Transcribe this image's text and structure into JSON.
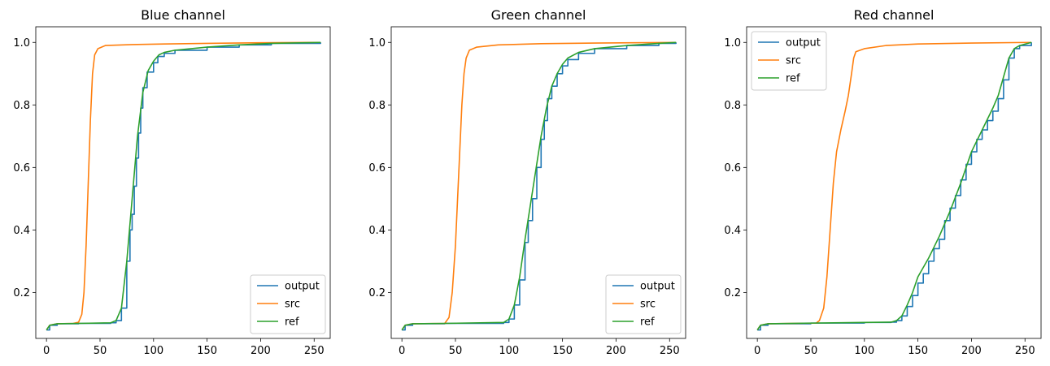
{
  "chart_data": [
    {
      "type": "line",
      "title": "Blue channel",
      "xlim": [
        -10,
        265
      ],
      "ylim": [
        0.053,
        1.05
      ],
      "xticks": [
        0,
        50,
        100,
        150,
        200,
        250
      ],
      "xtick_labels": [
        "0",
        "50",
        "100",
        "150",
        "200",
        "250"
      ],
      "yticks": [
        0.2,
        0.4,
        0.6,
        0.8,
        1.0
      ],
      "ytick_labels": [
        "0.2",
        "0.4",
        "0.6",
        "0.8",
        "1.0"
      ],
      "legend_position": "lower right",
      "series": [
        {
          "name": "output",
          "color": "#1f77b4",
          "step": true,
          "points": [
            [
              0,
              0.08
            ],
            [
              3,
              0.095
            ],
            [
              10,
              0.1
            ],
            [
              30,
              0.101
            ],
            [
              60,
              0.103
            ],
            [
              65,
              0.11
            ],
            [
              70,
              0.15
            ],
            [
              75,
              0.3
            ],
            [
              78,
              0.4
            ],
            [
              80,
              0.45
            ],
            [
              82,
              0.54
            ],
            [
              84,
              0.63
            ],
            [
              86,
              0.71
            ],
            [
              88,
              0.79
            ],
            [
              90,
              0.855
            ],
            [
              94,
              0.905
            ],
            [
              100,
              0.935
            ],
            [
              104,
              0.955
            ],
            [
              110,
              0.965
            ],
            [
              120,
              0.975
            ],
            [
              150,
              0.985
            ],
            [
              180,
              0.992
            ],
            [
              210,
              0.997
            ],
            [
              256,
              1.0
            ]
          ]
        },
        {
          "name": "src",
          "color": "#ff7f0e",
          "step": false,
          "points": [
            [
              0,
              0.08
            ],
            [
              3,
              0.095
            ],
            [
              10,
              0.1
            ],
            [
              25,
              0.101
            ],
            [
              30,
              0.105
            ],
            [
              33,
              0.13
            ],
            [
              35,
              0.2
            ],
            [
              37,
              0.35
            ],
            [
              39,
              0.55
            ],
            [
              41,
              0.75
            ],
            [
              43,
              0.9
            ],
            [
              45,
              0.96
            ],
            [
              48,
              0.98
            ],
            [
              55,
              0.99
            ],
            [
              80,
              0.993
            ],
            [
              110,
              0.995
            ],
            [
              150,
              0.997
            ],
            [
              200,
              0.999
            ],
            [
              256,
              1.0
            ]
          ]
        },
        {
          "name": "ref",
          "color": "#2ca02c",
          "step": false,
          "points": [
            [
              0,
              0.08
            ],
            [
              3,
              0.095
            ],
            [
              10,
              0.1
            ],
            [
              30,
              0.101
            ],
            [
              60,
              0.103
            ],
            [
              65,
              0.11
            ],
            [
              70,
              0.15
            ],
            [
              75,
              0.3
            ],
            [
              80,
              0.5
            ],
            [
              85,
              0.7
            ],
            [
              90,
              0.84
            ],
            [
              95,
              0.91
            ],
            [
              100,
              0.94
            ],
            [
              105,
              0.96
            ],
            [
              110,
              0.968
            ],
            [
              120,
              0.975
            ],
            [
              150,
              0.985
            ],
            [
              180,
              0.992
            ],
            [
              210,
              0.997
            ],
            [
              256,
              1.0
            ]
          ]
        }
      ]
    },
    {
      "type": "line",
      "title": "Green channel",
      "xlim": [
        -10,
        265
      ],
      "ylim": [
        0.053,
        1.05
      ],
      "xticks": [
        0,
        50,
        100,
        150,
        200,
        250
      ],
      "xtick_labels": [
        "0",
        "50",
        "100",
        "150",
        "200",
        "250"
      ],
      "yticks": [
        0.2,
        0.4,
        0.6,
        0.8,
        1.0
      ],
      "ytick_labels": [
        "0.2",
        "0.4",
        "0.6",
        "0.8",
        "1.0"
      ],
      "legend_position": "lower right",
      "series": [
        {
          "name": "output",
          "color": "#1f77b4",
          "step": true,
          "points": [
            [
              0,
              0.08
            ],
            [
              3,
              0.095
            ],
            [
              10,
              0.1
            ],
            [
              40,
              0.101
            ],
            [
              95,
              0.104
            ],
            [
              100,
              0.115
            ],
            [
              105,
              0.16
            ],
            [
              110,
              0.24
            ],
            [
              115,
              0.36
            ],
            [
              118,
              0.43
            ],
            [
              122,
              0.5
            ],
            [
              126,
              0.6
            ],
            [
              130,
              0.69
            ],
            [
              133,
              0.75
            ],
            [
              136,
              0.82
            ],
            [
              140,
              0.86
            ],
            [
              145,
              0.9
            ],
            [
              150,
              0.925
            ],
            [
              155,
              0.945
            ],
            [
              165,
              0.965
            ],
            [
              180,
              0.98
            ],
            [
              210,
              0.99
            ],
            [
              240,
              0.997
            ],
            [
              256,
              1.0
            ]
          ]
        },
        {
          "name": "src",
          "color": "#ff7f0e",
          "step": false,
          "points": [
            [
              0,
              0.08
            ],
            [
              3,
              0.095
            ],
            [
              10,
              0.1
            ],
            [
              40,
              0.101
            ],
            [
              44,
              0.12
            ],
            [
              47,
              0.2
            ],
            [
              50,
              0.35
            ],
            [
              52,
              0.5
            ],
            [
              54,
              0.65
            ],
            [
              56,
              0.8
            ],
            [
              58,
              0.9
            ],
            [
              60,
              0.95
            ],
            [
              63,
              0.975
            ],
            [
              70,
              0.985
            ],
            [
              90,
              0.992
            ],
            [
              130,
              0.996
            ],
            [
              180,
              0.998
            ],
            [
              256,
              1.0
            ]
          ]
        },
        {
          "name": "ref",
          "color": "#2ca02c",
          "step": false,
          "points": [
            [
              0,
              0.08
            ],
            [
              3,
              0.095
            ],
            [
              10,
              0.1
            ],
            [
              40,
              0.101
            ],
            [
              95,
              0.104
            ],
            [
              100,
              0.115
            ],
            [
              105,
              0.16
            ],
            [
              110,
              0.25
            ],
            [
              115,
              0.37
            ],
            [
              120,
              0.48
            ],
            [
              125,
              0.59
            ],
            [
              130,
              0.7
            ],
            [
              135,
              0.79
            ],
            [
              140,
              0.86
            ],
            [
              145,
              0.9
            ],
            [
              150,
              0.93
            ],
            [
              155,
              0.95
            ],
            [
              165,
              0.968
            ],
            [
              180,
              0.98
            ],
            [
              210,
              0.99
            ],
            [
              240,
              0.997
            ],
            [
              256,
              1.0
            ]
          ]
        }
      ]
    },
    {
      "type": "line",
      "title": "Red channel",
      "xlim": [
        -10,
        265
      ],
      "ylim": [
        0.053,
        1.05
      ],
      "xticks": [
        0,
        50,
        100,
        150,
        200,
        250
      ],
      "xtick_labels": [
        "0",
        "50",
        "100",
        "150",
        "200",
        "250"
      ],
      "yticks": [
        0.2,
        0.4,
        0.6,
        0.8,
        1.0
      ],
      "ytick_labels": [
        "0.2",
        "0.4",
        "0.6",
        "0.8",
        "1.0"
      ],
      "legend_position": "upper left",
      "series": [
        {
          "name": "output",
          "color": "#1f77b4",
          "step": true,
          "points": [
            [
              0,
              0.08
            ],
            [
              3,
              0.095
            ],
            [
              10,
              0.1
            ],
            [
              50,
              0.102
            ],
            [
              100,
              0.104
            ],
            [
              125,
              0.105
            ],
            [
              130,
              0.11
            ],
            [
              135,
              0.125
            ],
            [
              140,
              0.155
            ],
            [
              145,
              0.19
            ],
            [
              150,
              0.23
            ],
            [
              155,
              0.26
            ],
            [
              160,
              0.3
            ],
            [
              165,
              0.34
            ],
            [
              170,
              0.37
            ],
            [
              175,
              0.43
            ],
            [
              180,
              0.47
            ],
            [
              185,
              0.51
            ],
            [
              190,
              0.56
            ],
            [
              195,
              0.61
            ],
            [
              200,
              0.65
            ],
            [
              205,
              0.69
            ],
            [
              210,
              0.72
            ],
            [
              215,
              0.75
            ],
            [
              220,
              0.78
            ],
            [
              225,
              0.82
            ],
            [
              230,
              0.88
            ],
            [
              235,
              0.95
            ],
            [
              240,
              0.98
            ],
            [
              245,
              0.99
            ],
            [
              256,
              1.0
            ]
          ]
        },
        {
          "name": "src",
          "color": "#ff7f0e",
          "step": false,
          "points": [
            [
              0,
              0.08
            ],
            [
              3,
              0.095
            ],
            [
              10,
              0.1
            ],
            [
              55,
              0.102
            ],
            [
              58,
              0.11
            ],
            [
              62,
              0.15
            ],
            [
              65,
              0.25
            ],
            [
              68,
              0.4
            ],
            [
              71,
              0.55
            ],
            [
              74,
              0.65
            ],
            [
              78,
              0.72
            ],
            [
              82,
              0.78
            ],
            [
              85,
              0.83
            ],
            [
              88,
              0.9
            ],
            [
              90,
              0.95
            ],
            [
              92,
              0.97
            ],
            [
              100,
              0.98
            ],
            [
              120,
              0.99
            ],
            [
              150,
              0.995
            ],
            [
              200,
              0.998
            ],
            [
              256,
              1.0
            ]
          ]
        },
        {
          "name": "ref",
          "color": "#2ca02c",
          "step": false,
          "points": [
            [
              0,
              0.08
            ],
            [
              3,
              0.095
            ],
            [
              10,
              0.1
            ],
            [
              50,
              0.102
            ],
            [
              100,
              0.104
            ],
            [
              125,
              0.105
            ],
            [
              130,
              0.11
            ],
            [
              135,
              0.125
            ],
            [
              140,
              0.16
            ],
            [
              145,
              0.2
            ],
            [
              150,
              0.25
            ],
            [
              160,
              0.31
            ],
            [
              170,
              0.38
            ],
            [
              180,
              0.46
            ],
            [
              190,
              0.55
            ],
            [
              200,
              0.65
            ],
            [
              210,
              0.72
            ],
            [
              220,
              0.79
            ],
            [
              225,
              0.83
            ],
            [
              230,
              0.89
            ],
            [
              235,
              0.95
            ],
            [
              240,
              0.98
            ],
            [
              245,
              0.99
            ],
            [
              256,
              1.0
            ]
          ]
        }
      ]
    }
  ]
}
